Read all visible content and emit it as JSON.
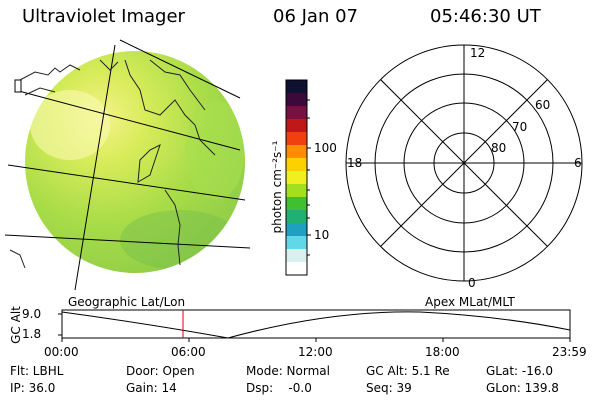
{
  "header": {
    "title": "Ultraviolet Imager",
    "date": "06 Jan 07",
    "time": "05:46:30 UT"
  },
  "colorbar": {
    "unit_label": "photon cm⁻²s⁻¹",
    "ticks": [
      "100",
      "10"
    ],
    "scale": "log",
    "colors": [
      "#101030",
      "#3a0a3a",
      "#7a1040",
      "#c01818",
      "#f04010",
      "#ff8c00",
      "#ffd000",
      "#f0f020",
      "#a0e020",
      "#40c030",
      "#20b070",
      "#20a0c0",
      "#60d8e8",
      "#d8f0f0",
      "#ffffff"
    ]
  },
  "left_panel": {
    "label": "Geographic Lat/Lon"
  },
  "right_panel": {
    "label": "Apex MLat/MLT",
    "mlt_labels": {
      "top": "12",
      "left": "18",
      "right": "6",
      "bottom": "0"
    },
    "lat_labels": [
      "60",
      "70",
      "80"
    ]
  },
  "altitude_plot": {
    "ylabel": "GC Alt",
    "yticks": [
      "9.0",
      "1.8"
    ],
    "xticks": [
      "00:00",
      "06:00",
      "12:00",
      "18:00",
      "23:59"
    ],
    "marker_color": "#e00000"
  },
  "info": {
    "flt": "Flt: LBHL",
    "ip": "IP: 36.0",
    "door": "Door: Open",
    "gain": "Gain: 14",
    "mode": "Mode: Normal",
    "dsp": "Dsp:    -0.0",
    "gcalt": "GC Alt: 5.1 Re",
    "seq": "Seq: 39",
    "glat": "GLat: -16.0",
    "glon": "GLon: 139.8"
  }
}
